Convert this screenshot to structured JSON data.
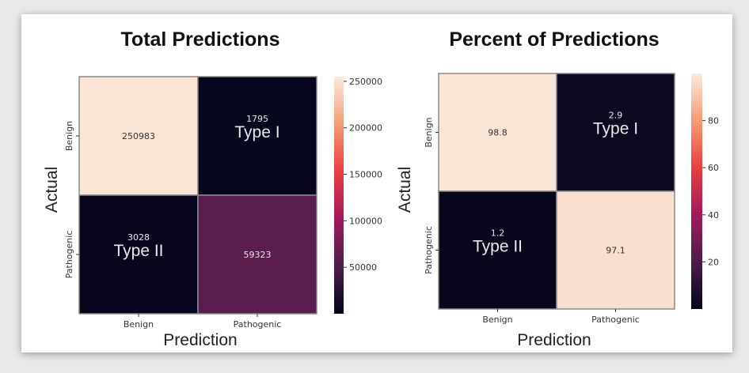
{
  "chart_data": [
    {
      "type": "heatmap",
      "title": "Total Predictions",
      "xlabel": "Prediction",
      "ylabel": "Actual",
      "x_categories": [
        "Benign",
        "Pathogenic"
      ],
      "y_categories": [
        "Benign",
        "Pathogenic"
      ],
      "values": [
        [
          250983,
          1795
        ],
        [
          3028,
          59323
        ]
      ],
      "value_labels": [
        [
          "250983",
          "1795"
        ],
        [
          "3028",
          "59323"
        ]
      ],
      "cell_annotations": [
        [
          "",
          "Type I"
        ],
        [
          "Type II",
          ""
        ]
      ],
      "colorbar": {
        "range": [
          0,
          255000
        ],
        "ticks": [
          50000,
          100000,
          150000,
          200000,
          250000
        ]
      },
      "colormap": "rocket",
      "grid": false
    },
    {
      "type": "heatmap",
      "title": "Percent of Predictions",
      "xlabel": "Prediction",
      "ylabel": "Actual",
      "x_categories": [
        "Benign",
        "Pathogenic"
      ],
      "y_categories": [
        "Benign",
        "Pathogenic"
      ],
      "values": [
        [
          98.8,
          2.9
        ],
        [
          1.2,
          97.1
        ]
      ],
      "value_labels": [
        [
          "98.8",
          "2.9"
        ],
        [
          "1.2",
          "97.1"
        ]
      ],
      "cell_annotations": [
        [
          "",
          "Type I"
        ],
        [
          "Type II",
          ""
        ]
      ],
      "colorbar": {
        "range": [
          0,
          100
        ],
        "ticks": [
          20,
          40,
          60,
          80
        ]
      },
      "colormap": "rocket",
      "grid": false
    }
  ]
}
